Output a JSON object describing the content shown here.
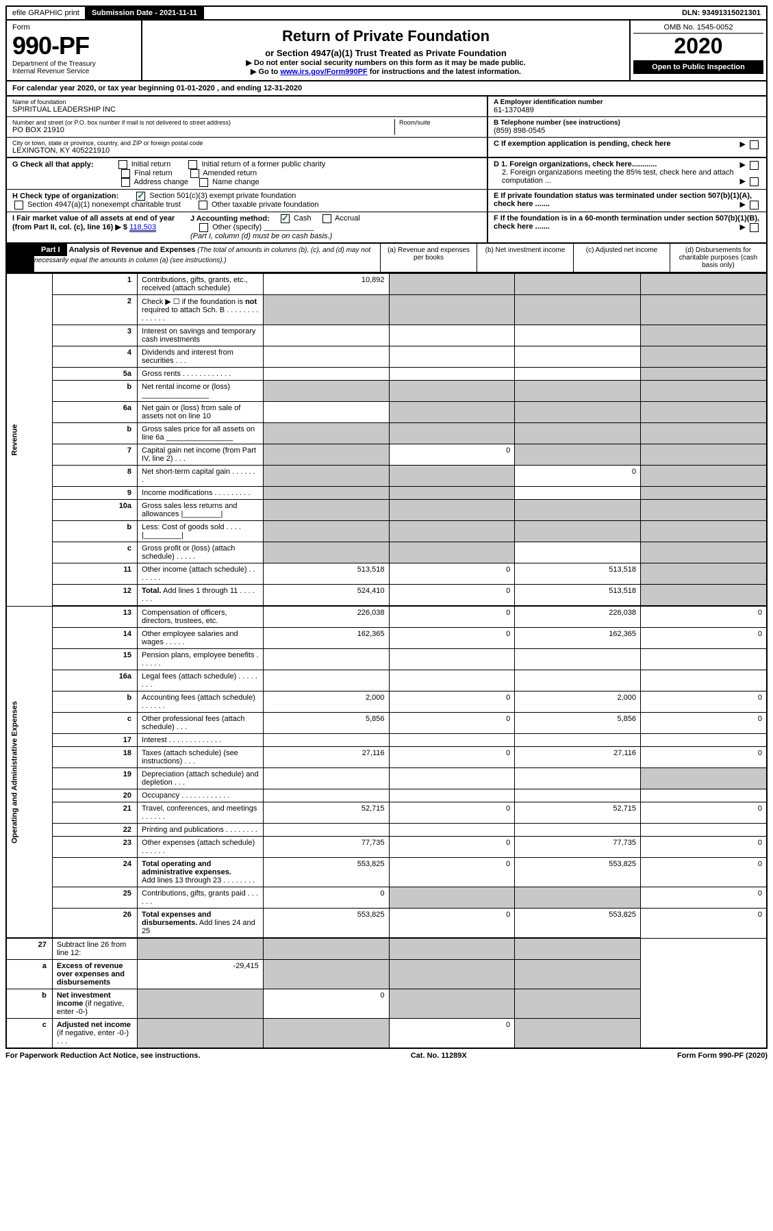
{
  "topbar": {
    "efile": "efile GRAPHIC print",
    "submission_label": "Submission Date - 2021-11-11",
    "dln_label": "DLN: 93491315021301"
  },
  "header": {
    "form_word": "Form",
    "form_num": "990-PF",
    "dept": "Department of the Treasury",
    "irs": "Internal Revenue Service",
    "title": "Return of Private Foundation",
    "subtitle": "or Section 4947(a)(1) Trust Treated as Private Foundation",
    "note1": "▶ Do not enter social security numbers on this form as it may be made public.",
    "note2_pre": "▶ Go to ",
    "note2_link": "www.irs.gov/Form990PF",
    "note2_post": " for instructions and the latest information.",
    "omb": "OMB No. 1545-0052",
    "year": "2020",
    "inspect": "Open to Public Inspection"
  },
  "calyear": "For calendar year 2020, or tax year beginning 01-01-2020                         , and ending 12-31-2020",
  "foundation": {
    "name_label": "Name of foundation",
    "name": "SPIRITUAL LEADERSHIP INC",
    "addr_label": "Number and street (or P.O. box number if mail is not delivered to street address)",
    "addr": "PO BOX 21910",
    "room_label": "Room/suite",
    "city_label": "City or town, state or province, country, and ZIP or foreign postal code",
    "city": "LEXINGTON, KY  405221910",
    "ein_label": "A Employer identification number",
    "ein": "61-1370489",
    "phone_label": "B Telephone number (see instructions)",
    "phone": "(859) 898-0545",
    "c_label": "C If exemption application is pending, check here",
    "d1": "D 1. Foreign organizations, check here............",
    "d2": "2. Foreign organizations meeting the 85% test, check here and attach computation ...",
    "e": "E  If private foundation status was terminated under section 507(b)(1)(A), check here .......",
    "f": "F  If the foundation is in a 60-month termination under section 507(b)(1)(B), check here .......",
    "g_label": "G Check all that apply:",
    "g_opts": [
      "Initial return",
      "Initial return of a former public charity",
      "Final return",
      "Amended return",
      "Address change",
      "Name change"
    ],
    "h_label": "H Check type of organization:",
    "h1": "Section 501(c)(3) exempt private foundation",
    "h2": "Section 4947(a)(1) nonexempt charitable trust",
    "h3": "Other taxable private foundation",
    "i_label": "I Fair market value of all assets at end of year (from Part II, col. (c), line 16) ▶ $",
    "i_val": "118,503",
    "j_label": "J Accounting method:",
    "j_cash": "Cash",
    "j_accrual": "Accrual",
    "j_other": "Other (specify)",
    "j_note": "(Part I, column (d) must be on cash basis.)"
  },
  "part1": {
    "label": "Part I",
    "title": "Analysis of Revenue and Expenses",
    "note": "(The total of amounts in columns (b), (c), and (d) may not necessarily equal the amounts in column (a) (see instructions).)",
    "col_a": "(a) Revenue and expenses per books",
    "col_b": "(b) Net investment income",
    "col_c": "(c) Adjusted net income",
    "col_d": "(d) Disbursements for charitable purposes (cash basis only)"
  },
  "vert": {
    "revenue": "Revenue",
    "expenses": "Operating and Administrative Expenses"
  },
  "rows": [
    {
      "n": "1",
      "d": "g",
      "a": "10,892",
      "b": "g",
      "c": "g"
    },
    {
      "n": "2",
      "d": "g",
      "a": "g",
      "b": "g",
      "c": "g"
    },
    {
      "n": "3",
      "d": "g",
      "a": "",
      "b": "",
      "c": ""
    },
    {
      "n": "4",
      "d": "g",
      "a": "",
      "b": "",
      "c": ""
    },
    {
      "n": "5a",
      "d": "g",
      "a": "",
      "b": "",
      "c": ""
    },
    {
      "n": "b",
      "d": "g",
      "a": "g",
      "b": "g",
      "c": "g"
    },
    {
      "n": "6a",
      "d": "g",
      "a": "",
      "b": "g",
      "c": "g"
    },
    {
      "n": "b",
      "d": "g",
      "a": "g",
      "b": "g",
      "c": "g"
    },
    {
      "n": "7",
      "d": "g",
      "a": "g",
      "b": "0",
      "c": "g"
    },
    {
      "n": "8",
      "d": "g",
      "a": "g",
      "b": "g",
      "c": "0"
    },
    {
      "n": "9",
      "d": "g",
      "a": "g",
      "b": "g",
      "c": ""
    },
    {
      "n": "10a",
      "d": "g",
      "a": "g",
      "b": "g",
      "c": "g"
    },
    {
      "n": "b",
      "d": "g",
      "a": "g",
      "b": "g",
      "c": "g"
    },
    {
      "n": "c",
      "d": "g",
      "a": "g",
      "b": "g",
      "c": ""
    },
    {
      "n": "11",
      "d": "g",
      "a": "513,518",
      "b": "0",
      "c": "513,518"
    },
    {
      "n": "12",
      "d": "g",
      "a": "524,410",
      "b": "0",
      "c": "513,518",
      "bold": true
    }
  ],
  "rows2": [
    {
      "n": "13",
      "d": "0",
      "a": "226,038",
      "b": "0",
      "c": "226,038"
    },
    {
      "n": "14",
      "d": "0",
      "a": "162,365",
      "b": "0",
      "c": "162,365"
    },
    {
      "n": "15",
      "d": "",
      "a": "",
      "b": "",
      "c": ""
    },
    {
      "n": "16a",
      "d": "",
      "a": "",
      "b": "",
      "c": ""
    },
    {
      "n": "b",
      "d": "0",
      "a": "2,000",
      "b": "0",
      "c": "2,000"
    },
    {
      "n": "c",
      "d": "0",
      "a": "5,856",
      "b": "0",
      "c": "5,856"
    },
    {
      "n": "17",
      "d": "",
      "a": "",
      "b": "",
      "c": ""
    },
    {
      "n": "18",
      "d": "0",
      "a": "27,116",
      "b": "0",
      "c": "27,116"
    },
    {
      "n": "19",
      "d": "g",
      "a": "",
      "b": "",
      "c": ""
    },
    {
      "n": "20",
      "d": "",
      "a": "",
      "b": "",
      "c": ""
    },
    {
      "n": "21",
      "d": "0",
      "a": "52,715",
      "b": "0",
      "c": "52,715"
    },
    {
      "n": "22",
      "d": "",
      "a": "",
      "b": "",
      "c": ""
    },
    {
      "n": "23",
      "d": "0",
      "a": "77,735",
      "b": "0",
      "c": "77,735"
    },
    {
      "n": "24",
      "d": "0",
      "a": "553,825",
      "b": "0",
      "c": "553,825",
      "bold": true
    },
    {
      "n": "25",
      "d": "0",
      "a": "0",
      "b": "g",
      "c": "g"
    },
    {
      "n": "26",
      "d": "0",
      "a": "553,825",
      "b": "0",
      "c": "553,825",
      "bold": true
    }
  ],
  "rows3": [
    {
      "n": "27",
      "d": "g",
      "a": "g",
      "b": "g",
      "c": "g"
    },
    {
      "n": "a",
      "d": "g",
      "a": "-29,415",
      "b": "g",
      "c": "g",
      "bold": true
    },
    {
      "n": "b",
      "d": "g",
      "a": "g",
      "b": "0",
      "c": "g",
      "bold": true
    },
    {
      "n": "c",
      "d": "g",
      "a": "g",
      "b": "g",
      "c": "0",
      "bold": true
    }
  ],
  "footer": {
    "left": "For Paperwork Reduction Act Notice, see instructions.",
    "mid": "Cat. No. 11289X",
    "right": "Form 990-PF (2020)"
  }
}
